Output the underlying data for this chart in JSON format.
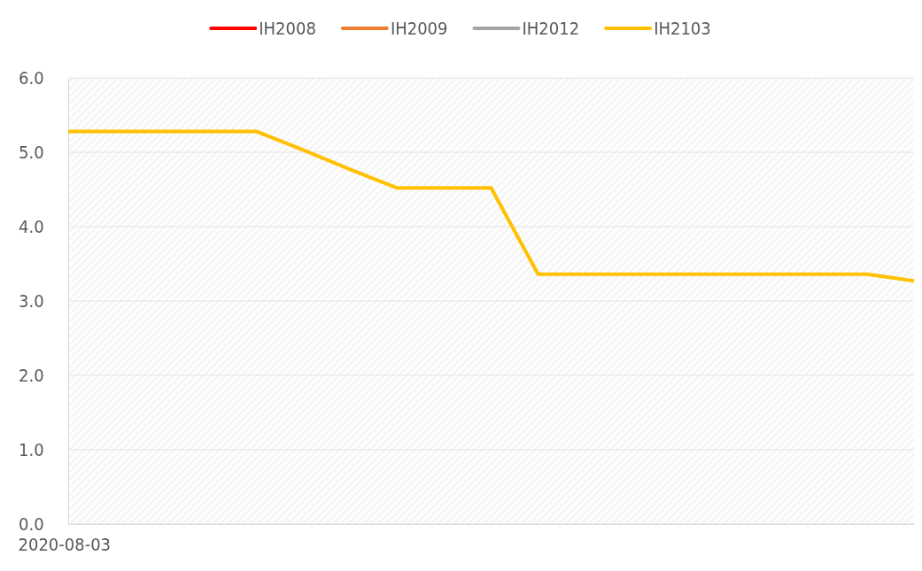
{
  "chart_data": {
    "type": "line",
    "categories": [
      "2020-08-03",
      null,
      null,
      null,
      null,
      null,
      null,
      null,
      null,
      null,
      null,
      null,
      null,
      null,
      null,
      null,
      null,
      null,
      null
    ],
    "series": [
      {
        "name": "IH2008",
        "color": "#ff0000",
        "values": [
          null,
          null,
          null,
          null,
          null,
          null,
          null,
          null,
          null,
          null,
          null,
          null,
          null,
          null,
          null,
          null,
          null,
          null,
          null
        ]
      },
      {
        "name": "IH2009",
        "color": "#ed7d31",
        "values": [
          null,
          null,
          null,
          null,
          null,
          null,
          null,
          null,
          null,
          null,
          null,
          null,
          null,
          null,
          null,
          null,
          null,
          null,
          null
        ]
      },
      {
        "name": "IH2012",
        "color": "#a5a5a5",
        "values": [
          null,
          null,
          null,
          null,
          null,
          null,
          null,
          null,
          null,
          null,
          null,
          null,
          null,
          null,
          null,
          null,
          null,
          null,
          null
        ]
      },
      {
        "name": "IH2103",
        "color": "#ffc000",
        "values": [
          5.28,
          5.28,
          5.28,
          5.28,
          5.28,
          5.03,
          4.77,
          4.52,
          4.52,
          4.52,
          3.36,
          3.36,
          3.36,
          3.36,
          3.36,
          3.36,
          3.36,
          3.36,
          3.27
        ]
      }
    ],
    "ylim": [
      0,
      6
    ],
    "yticks": [
      {
        "value": 0,
        "label": "0.0"
      },
      {
        "value": 1,
        "label": "1.0"
      },
      {
        "value": 2,
        "label": "2.0"
      },
      {
        "value": 3,
        "label": "3.0"
      },
      {
        "value": 4,
        "label": "4.0"
      },
      {
        "value": 5,
        "label": "5.0"
      },
      {
        "value": 6,
        "label": "6.0"
      }
    ],
    "grid": "y",
    "legend": "top",
    "marker": "none",
    "line_style": "solid"
  }
}
